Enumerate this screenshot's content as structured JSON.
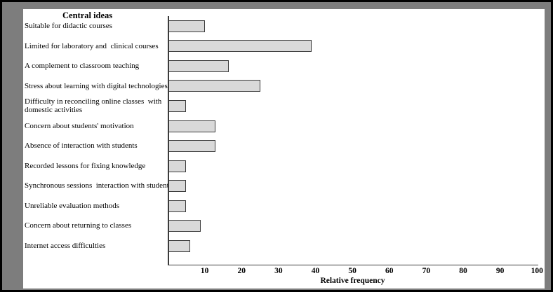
{
  "frame": {
    "outer_border_color": "#000000",
    "frame_color": "#7d7d7d",
    "panel_color": "#ffffff"
  },
  "chart_data": {
    "type": "bar",
    "orientation": "horizontal",
    "title": "Central ideas",
    "xlabel": "Relative frequency",
    "xlim": [
      0,
      100
    ],
    "xticks": [
      10,
      20,
      30,
      40,
      50,
      60,
      70,
      80,
      90,
      100
    ],
    "grid": false,
    "legend": false,
    "bar_fill": "#d9d9d9",
    "bar_border": "#3b3b3b",
    "axis_color": "#3b3b3b",
    "categories": [
      "Suitable for didactic courses",
      "Limited for laboratory and  clinical courses",
      "A complement to classroom teaching",
      "Stress about learning with digital technologies",
      "Difficulty in reconciling online classes  with\ndomestic activities",
      "Concern about students' motivation",
      "Absence of interaction with students",
      "Recorded lessons for fixing knowledge",
      "Synchronous sessions  interaction with students",
      "Unreliable evaluation methods",
      "Concern about returning to classes",
      "Internet access difficulties"
    ],
    "values": [
      10,
      39,
      16.5,
      25,
      5,
      13,
      13,
      5,
      5,
      5,
      9,
      6
    ]
  }
}
